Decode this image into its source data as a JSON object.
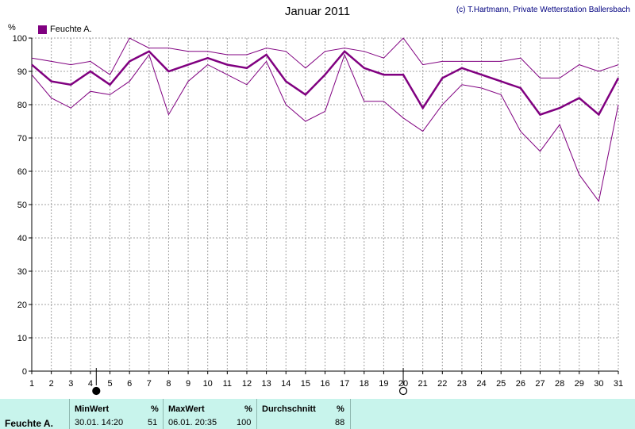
{
  "title": "Januar 2011",
  "copyright": "(c) T.Hartmann, Private Wetterstation Ballersbach",
  "colors": {
    "series": "#800080",
    "grid": "#a0a0a0",
    "axis": "#000000",
    "footer_bg": "#c8f4ec"
  },
  "chart_data": {
    "type": "line",
    "title": "Januar 2011",
    "ylabel": "%",
    "xlabel": "",
    "ylim": [
      0,
      100
    ],
    "xlim": [
      1,
      31
    ],
    "y_ticks": [
      0,
      10,
      20,
      30,
      40,
      50,
      60,
      70,
      80,
      90,
      100
    ],
    "x": [
      1,
      2,
      3,
      4,
      5,
      6,
      7,
      8,
      9,
      10,
      11,
      12,
      13,
      14,
      15,
      16,
      17,
      18,
      19,
      20,
      21,
      22,
      23,
      24,
      25,
      26,
      27,
      28,
      29,
      30,
      31
    ],
    "grid": true,
    "legend_position": "top-left",
    "markers": [
      {
        "x": 4.3,
        "symbol": "full-moon"
      },
      {
        "x": 20,
        "symbol": "new-moon"
      }
    ],
    "series": [
      {
        "name": "Feuchte A.",
        "role": "mean",
        "values": [
          92,
          87,
          86,
          90,
          86,
          93,
          96,
          90,
          92,
          94,
          92,
          91,
          95,
          87,
          83,
          89,
          96,
          91,
          89,
          89,
          79,
          88,
          91,
          89,
          87,
          85,
          77,
          79,
          82,
          77,
          88
        ]
      },
      {
        "role": "max",
        "values": [
          94,
          93,
          92,
          93,
          89,
          100,
          97,
          97,
          96,
          96,
          95,
          95,
          97,
          96,
          91,
          96,
          97,
          96,
          94,
          100,
          92,
          93,
          93,
          93,
          93,
          94,
          88,
          88,
          92,
          90,
          92
        ]
      },
      {
        "role": "min",
        "values": [
          89,
          82,
          79,
          84,
          83,
          87,
          95,
          77,
          87,
          92,
          89,
          86,
          93,
          80,
          75,
          78,
          95,
          81,
          81,
          76,
          72,
          80,
          86,
          85,
          83,
          72,
          66,
          74,
          59,
          51,
          80
        ]
      }
    ]
  },
  "footer": {
    "series_name": "Feuchte A.",
    "min_label": "MinWert",
    "min_unit": "%",
    "min_datetime": "30.01.  14:20",
    "min_value": "51",
    "max_label": "MaxWert",
    "max_unit": "%",
    "max_datetime": "06.01.  20:35",
    "max_value": "100",
    "avg_label": "Durchschnitt",
    "avg_unit": "%",
    "avg_value": "88"
  }
}
